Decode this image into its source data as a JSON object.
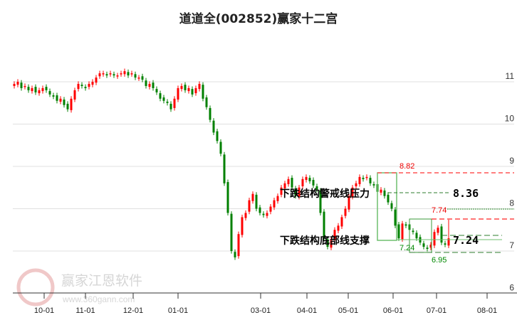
{
  "chart_data": {
    "type": "candlestick",
    "title": "道道全(002852)赢家十二宫",
    "ylim": [
      6,
      11.7
    ],
    "yticks": [
      "6",
      "7",
      "8",
      "9",
      "10",
      "11"
    ],
    "ytick_values": [
      6,
      7,
      8,
      9,
      10,
      11
    ],
    "xticks": [
      "10-01",
      "11-01",
      "12-01",
      "01-01",
      "03-01",
      "04-01",
      "05-01",
      "06-01",
      "07-01",
      "08-01"
    ],
    "grid": true,
    "closes": [
      10.95,
      11.0,
      10.85,
      10.9,
      10.8,
      10.85,
      10.75,
      10.8,
      10.85,
      10.8,
      10.7,
      10.65,
      10.55,
      10.6,
      10.45,
      10.35,
      10.6,
      10.8,
      10.95,
      10.9,
      10.85,
      10.95,
      11.0,
      11.1,
      11.2,
      11.2,
      11.15,
      11.2,
      11.15,
      11.15,
      11.2,
      11.25,
      11.15,
      11.2,
      11.1,
      11.1,
      11.05,
      10.9,
      10.95,
      10.85,
      10.75,
      10.6,
      10.55,
      10.5,
      10.35,
      10.6,
      10.85,
      10.9,
      10.8,
      10.85,
      10.7,
      10.85,
      10.95,
      10.6,
      10.4,
      10.1,
      9.8,
      9.6,
      9.3,
      8.6,
      7.9,
      7.0,
      6.85,
      7.4,
      7.8,
      7.9,
      8.2,
      8.35,
      8.0,
      7.9,
      7.85,
      7.9,
      8.05,
      8.2,
      8.3,
      8.5,
      8.6,
      8.7,
      8.5,
      8.3,
      8.5,
      8.7,
      8.75,
      8.65,
      8.55,
      8.45,
      7.9,
      7.3,
      7.1,
      7.25,
      7.5,
      7.6,
      7.8,
      8.0,
      8.3,
      8.5,
      8.6,
      8.75,
      8.7,
      8.75,
      8.6,
      8.55,
      8.4,
      8.45,
      8.3,
      8.15,
      8.0,
      7.6,
      7.3,
      7.65,
      7.6,
      7.5,
      7.45,
      7.3,
      7.2,
      7.1,
      7.05,
      7.15,
      7.45,
      7.55,
      7.2,
      7.15,
      7.3
    ],
    "last_high": 7.74,
    "annotations": {
      "resistance_label": "下跌结构警戒线压力",
      "support_label": "下跌结构底部线支撑",
      "resistance_value": "8.36",
      "support_value": "7.24",
      "upper_level": "8.82",
      "lower_level": "6.95",
      "box_low_label": "7.24",
      "recent_high": "7.74"
    },
    "colors": {
      "up": "#ff0000",
      "down": "#008000",
      "grid": "#e0e0e0",
      "resist": "#ff4444",
      "support": "#228b22"
    }
  },
  "watermark": {
    "name": "赢家江恩软件",
    "url": "www.360gann.com"
  }
}
